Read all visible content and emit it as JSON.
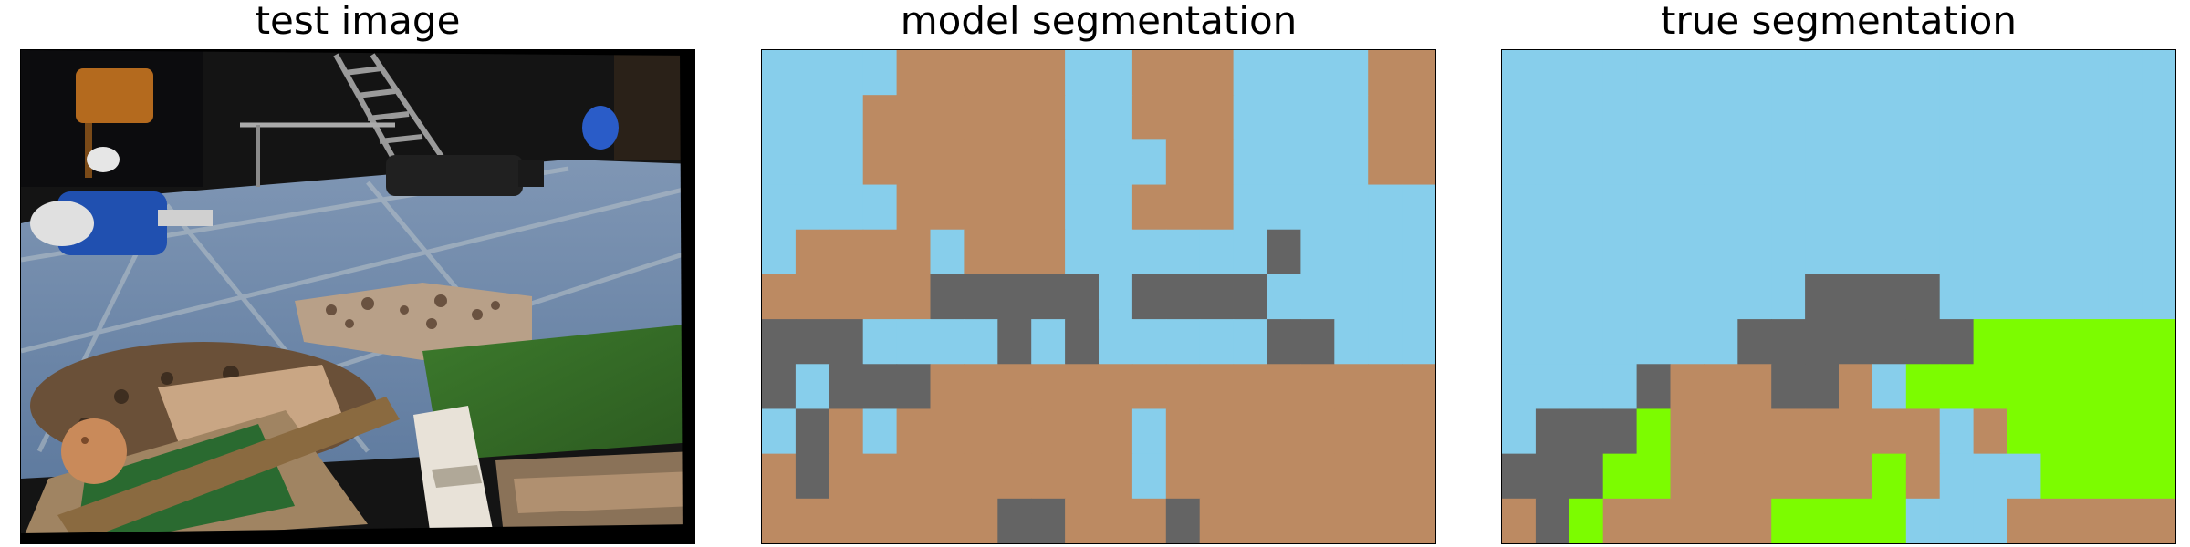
{
  "panels": [
    {
      "id": "test-image",
      "title": "test image"
    },
    {
      "id": "model-segmentation",
      "title": "model segmentation"
    },
    {
      "id": "true-segmentation",
      "title": "true segmentation"
    }
  ],
  "colors": {
    "sky": "#87ceeb",
    "brown": "#bc8a62",
    "gray": "#646464",
    "green": "#7cfc00"
  },
  "grid": {
    "rows": 11,
    "cols": 20
  },
  "model_segmentation": [
    "SSSSBBBBBSSBBBSSSSBB",
    "SSSBBBBBBSSBBBSSSSBB",
    "SSSBBBBBBSSSBBSSSSBB",
    "SSSSBBBBBSSBBBSSSSSS",
    "SBBBBSBBBSSSSSSGSSSS",
    "BBBBBGGGGGSGGGGSSSSS",
    "GGGSSSSGSGSSSSSGGSSS",
    "GSGGGBBBBBBBBBBBBBBB",
    "SGBSBBBBBBBSBBBBBBBB",
    "BGBBBBBBBBBSBBBBBBBB",
    "BBBBBBBGGBBBGBBBBBBB"
  ],
  "true_segmentation": [
    "SSSSSSSSSSSSSSSSSSSS",
    "SSSSSSSSSSSSSSSSSSSS",
    "SSSSSSSSSSSSSSSSSSSS",
    "SSSSSSSSSSSSSSSSSSSS",
    "SSSSSSSSSSSSSSSSSSSS",
    "SSSSSSSSSGGGGSSSSSSS",
    "SSSSSSSGGGGGGGVVVVVV",
    "SSSSGBBBGGBSVVVVVVVV",
    "SGGGVBBBBBBBBSBVVVVV",
    "GGGVVBBBBBBVBSSSVVVV",
    "BGVBBBBBVVVVSSSBBBBB"
  ]
}
